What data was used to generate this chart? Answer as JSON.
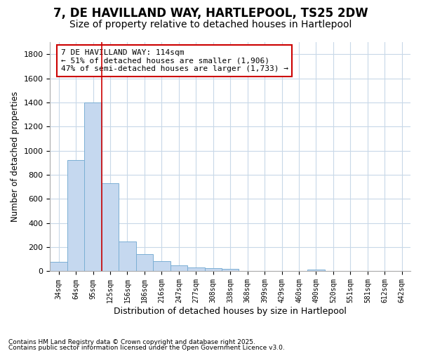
{
  "title1": "7, DE HAVILLAND WAY, HARTLEPOOL, TS25 2DW",
  "title2": "Size of property relative to detached houses in Hartlepool",
  "xlabel": "Distribution of detached houses by size in Hartlepool",
  "ylabel": "Number of detached properties",
  "categories": [
    "34sqm",
    "64sqm",
    "95sqm",
    "125sqm",
    "156sqm",
    "186sqm",
    "216sqm",
    "247sqm",
    "277sqm",
    "308sqm",
    "338sqm",
    "368sqm",
    "399sqm",
    "429sqm",
    "460sqm",
    "490sqm",
    "520sqm",
    "551sqm",
    "581sqm",
    "612sqm",
    "642sqm"
  ],
  "values": [
    80,
    920,
    1400,
    730,
    245,
    140,
    85,
    50,
    30,
    25,
    18,
    0,
    0,
    0,
    0,
    15,
    0,
    0,
    0,
    0,
    0
  ],
  "bar_color": "#c5d8ef",
  "bar_edge_color": "#7bafd4",
  "vline_color": "#cc0000",
  "annotation_text": "7 DE HAVILLAND WAY: 114sqm\n← 51% of detached houses are smaller (1,906)\n47% of semi-detached houses are larger (1,733) →",
  "annotation_box_color": "#ffffff",
  "annotation_box_edge": "#cc0000",
  "ylim": [
    0,
    1900
  ],
  "yticks": [
    0,
    200,
    400,
    600,
    800,
    1000,
    1200,
    1400,
    1600,
    1800
  ],
  "footnote1": "Contains HM Land Registry data © Crown copyright and database right 2025.",
  "footnote2": "Contains public sector information licensed under the Open Government Licence v3.0.",
  "bg_color": "#ffffff",
  "plot_bg_color": "#ffffff",
  "grid_color": "#c8d8e8",
  "title1_fontsize": 12,
  "title2_fontsize": 10,
  "vline_x": 2.5
}
